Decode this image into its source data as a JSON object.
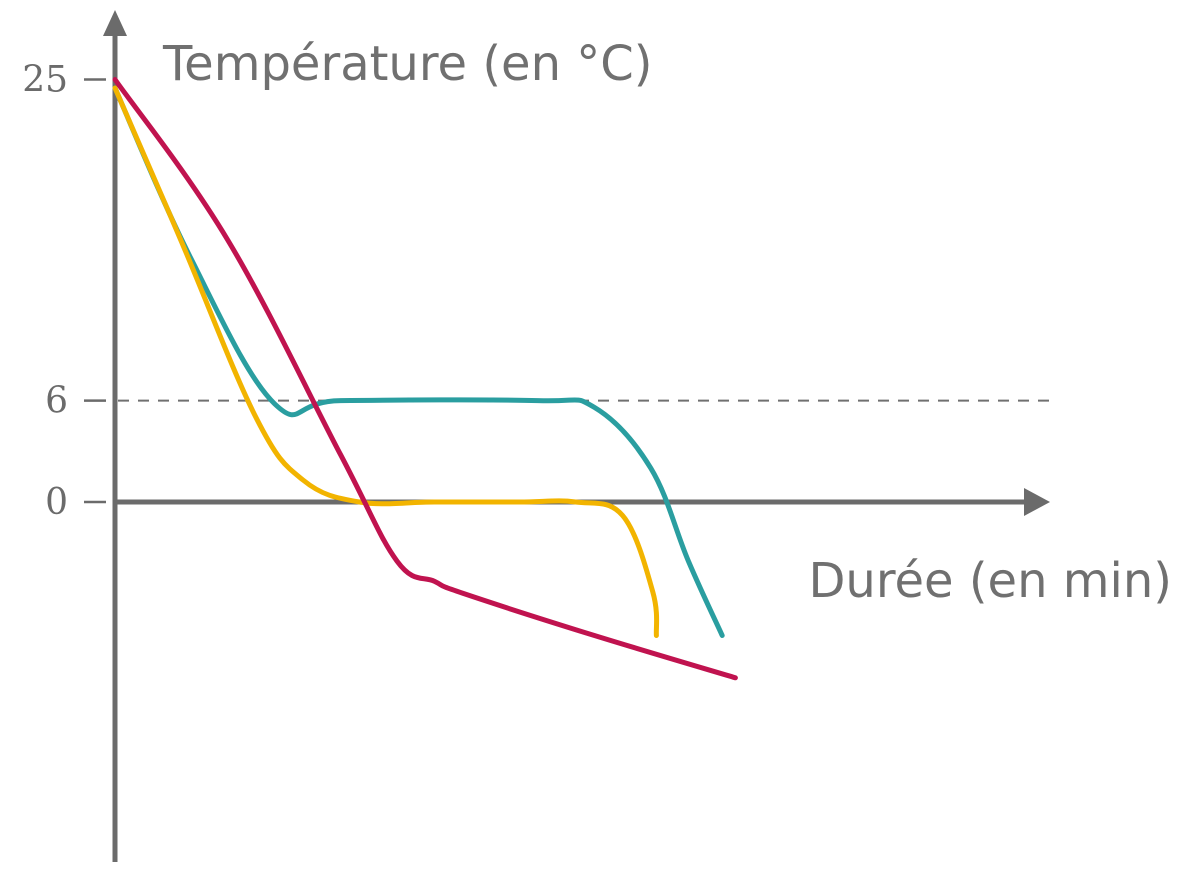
{
  "chart_data": {
    "type": "line",
    "ylabel": "Température (en °C)",
    "xlabel": "Durée (en min)",
    "y_ticks": [
      25,
      6,
      0
    ],
    "ylim": [
      -21,
      26
    ],
    "xlim": [
      0,
      100
    ],
    "grid": false,
    "legend": "none",
    "reference_lines": [
      {
        "axis": "y",
        "value": 6,
        "style": "dashed"
      }
    ],
    "series": [
      {
        "color": "#2a9ea0",
        "x": [
          0,
          8,
          17,
          24,
          45,
          51,
          57,
          61,
          64.6
        ],
        "y": [
          24.5,
          14.5,
          5.8,
          6,
          6,
          5.6,
          2.0,
          -3.5,
          -7.9
        ]
      },
      {
        "color": "#f2b400",
        "x": [
          0,
          7,
          15,
          20,
          26,
          34,
          43,
          49,
          54,
          57.2,
          57.6
        ],
        "y": [
          24.5,
          15.5,
          5.0,
          1.3,
          0,
          0,
          0,
          0,
          -0.8,
          -5.3,
          -7.9
        ]
      },
      {
        "color": "#c0134f",
        "x": [
          0,
          12,
          24,
          30,
          34,
          37,
          51,
          66
        ],
        "y": [
          25.0,
          15.5,
          2.8,
          -3.5,
          -4.7,
          -5.4,
          -7.9,
          -10.4
        ]
      }
    ]
  }
}
